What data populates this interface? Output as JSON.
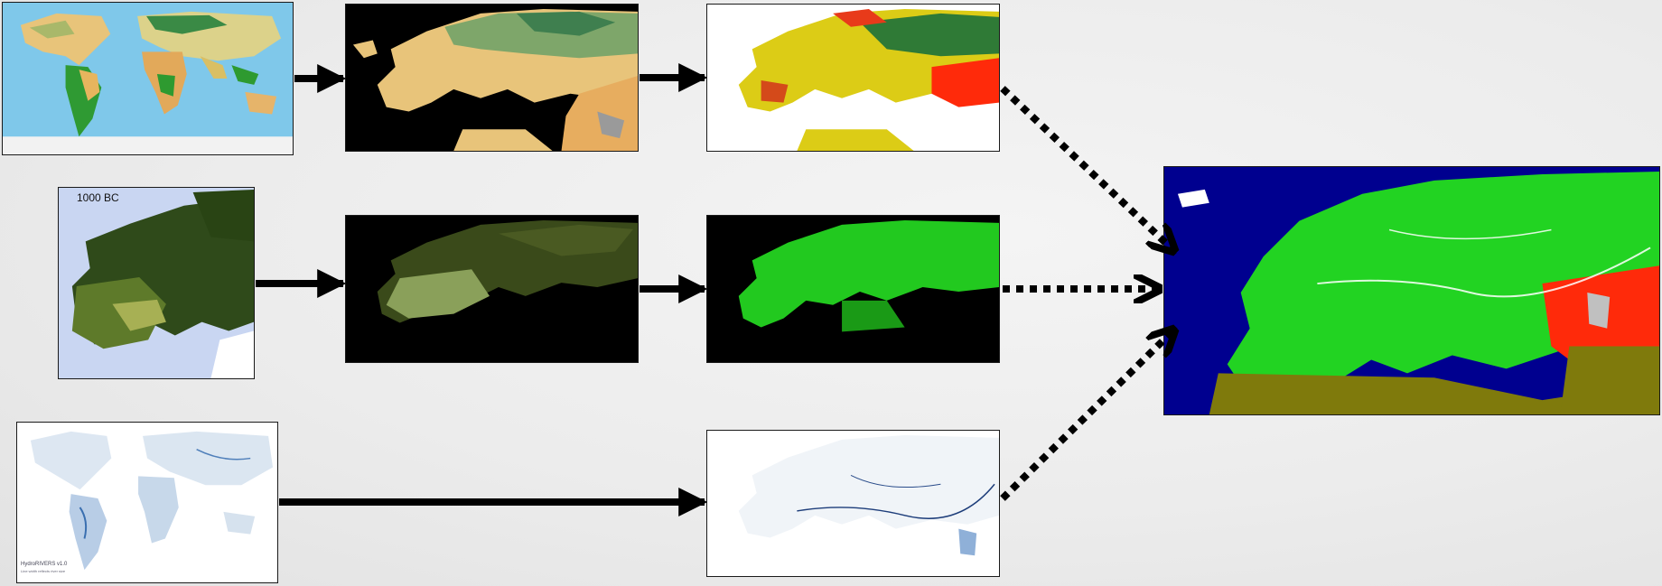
{
  "panels": {
    "world_land_cover": {
      "kind": "world-map"
    },
    "europe_land_cover": {
      "kind": "europe-map"
    },
    "europe_suitability": {
      "kind": "europe-map"
    },
    "forest_1000bc": {
      "kind": "europe-map",
      "label": "1000 BC"
    },
    "europe_forest_dark": {
      "kind": "europe-map"
    },
    "europe_forest_green": {
      "kind": "europe-map"
    },
    "world_rivers": {
      "kind": "world-map",
      "legend_title": "HydroRIVERS v1.0",
      "legend_sub": "Line width reflects river size"
    },
    "europe_rivers": {
      "kind": "europe-map"
    },
    "europe_combined": {
      "kind": "europe-map"
    }
  },
  "colors": {
    "ocean_blue": "#78c4e8",
    "black": "#000000",
    "navy": "#00008f",
    "bright_green": "#22d322",
    "red": "#ff2a0a",
    "olive": "#7f7a0c",
    "yellow": "#e4d40e",
    "dark_forest": "#2f4a1a"
  }
}
